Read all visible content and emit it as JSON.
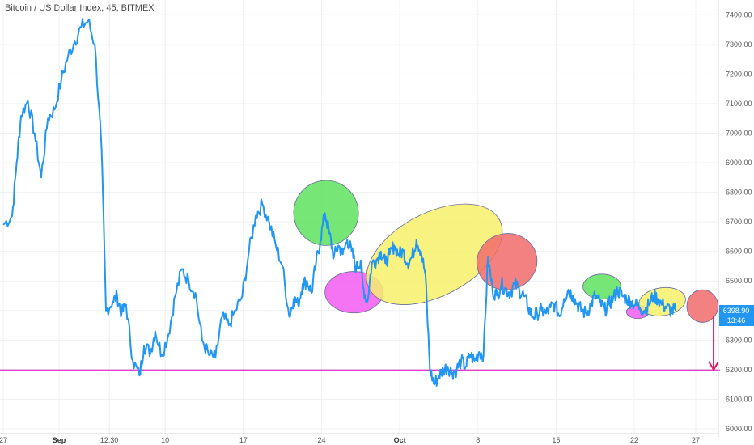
{
  "header": {
    "title": "Bitcoin / US Dollar Index, 45, BITMEX"
  },
  "price_badge": {
    "value": "6398.90",
    "countdown": "13:46",
    "color": "#2196f3"
  },
  "colors": {
    "line": "#2196f3",
    "support": "#e040c8",
    "arrow": "#e8185a",
    "grid": "#eef0f3"
  },
  "chart_data": {
    "type": "line",
    "title": "Bitcoin / US Dollar Index, 45, BITMEX",
    "xlabel": "",
    "ylabel": "",
    "ylim": [
      6000,
      7450
    ],
    "y_ticks": [
      6000,
      6100,
      6200,
      6300,
      6400,
      6500,
      6600,
      6700,
      6800,
      6900,
      7000,
      7100,
      7200,
      7300,
      7400
    ],
    "y_tick_labels": [
      "6000.00",
      "6100.00",
      "6200.00",
      "6300.00",
      "6400.00",
      "6500.00",
      "6600.00",
      "6700.00",
      "6800.00",
      "6900.00",
      "7000.00",
      "7100.00",
      "7200.00",
      "7300.00",
      "7400.00"
    ],
    "x_range": [
      0,
      62
    ],
    "x_ticks": [
      {
        "x": 0.0,
        "label": "27"
      },
      {
        "x": 5.0,
        "label": "Sep",
        "bold": true
      },
      {
        "x": 9.5,
        "label": "12:30"
      },
      {
        "x": 14.5,
        "label": "10"
      },
      {
        "x": 21.5,
        "label": "17"
      },
      {
        "x": 28.5,
        "label": "24"
      },
      {
        "x": 35.5,
        "label": "Oct",
        "bold": true
      },
      {
        "x": 42.5,
        "label": "8"
      },
      {
        "x": 49.5,
        "label": "15"
      },
      {
        "x": 56.5,
        "label": "22"
      },
      {
        "x": 62.0,
        "label": "27"
      }
    ],
    "series": [
      {
        "x": [
          0,
          0.8,
          1.2,
          1.6,
          2.2,
          2.8,
          3.4,
          4.0,
          4.6,
          5.2,
          5.8,
          6.4,
          7.0,
          7.6,
          8.2,
          8.8,
          9.2,
          9.8,
          10.2,
          10.6,
          11.0,
          11.6,
          12.2,
          12.6,
          13.2,
          13.6,
          14.2,
          14.8,
          15.4,
          16.0,
          16.6,
          17.2,
          17.8,
          18.4,
          19.0,
          19.6,
          20.2,
          20.8,
          21.4,
          22.0,
          22.6,
          23.2,
          23.8,
          24.4,
          25.0,
          25.6,
          26.0,
          26.4,
          26.8,
          27.2,
          27.6,
          28.0,
          28.4,
          28.8,
          29.2,
          29.6,
          30.0,
          30.4,
          30.8,
          31.2,
          31.6,
          32.0,
          32.2,
          32.6,
          33.0,
          33.4,
          33.8,
          34.2,
          34.6,
          35.0,
          35.4,
          35.8,
          36.2,
          36.6,
          37.0,
          37.4,
          37.8,
          38.2,
          38.6,
          39.0,
          39.4,
          39.8,
          40.2,
          40.6,
          41.0,
          41.4,
          41.8,
          42.2,
          42.6,
          43.0,
          43.4,
          43.8,
          44.2,
          44.6,
          45.0,
          45.4,
          45.8,
          46.2,
          46.6,
          47.0,
          47.4,
          47.8,
          48.2,
          48.6,
          49.0,
          49.4,
          49.8,
          50.2,
          50.6,
          51.0,
          51.4,
          51.8,
          52.2,
          52.6,
          53.0,
          53.4,
          53.8,
          54.2,
          54.6,
          55.0,
          55.4,
          55.8,
          56.2,
          56.6,
          57.0,
          57.4,
          57.8,
          58.2,
          58.6,
          59.0,
          59.4,
          59.8,
          60.2
        ],
        "y": [
          6690,
          6720,
          6900,
          7060,
          7110,
          7000,
          6850,
          7050,
          7080,
          7180,
          7260,
          7310,
          7360,
          7380,
          7300,
          6950,
          6400,
          6430,
          6450,
          6390,
          6420,
          6230,
          6180,
          6280,
          6260,
          6330,
          6250,
          6320,
          6450,
          6540,
          6500,
          6460,
          6300,
          6250,
          6240,
          6380,
          6350,
          6400,
          6450,
          6600,
          6720,
          6760,
          6700,
          6620,
          6550,
          6380,
          6440,
          6420,
          6490,
          6500,
          6460,
          6560,
          6640,
          6730,
          6660,
          6580,
          6620,
          6590,
          6640,
          6600,
          6540,
          6570,
          6480,
          6430,
          6560,
          6570,
          6600,
          6560,
          6590,
          6620,
          6590,
          6600,
          6560,
          6580,
          6640,
          6600,
          6520,
          6200,
          6150,
          6180,
          6200,
          6210,
          6190,
          6200,
          6230,
          6210,
          6250,
          6230,
          6260,
          6250,
          6580,
          6470,
          6450,
          6490,
          6470,
          6460,
          6490,
          6470,
          6450,
          6410,
          6380,
          6390,
          6400,
          6390,
          6410,
          6420,
          6380,
          6440,
          6470,
          6450,
          6420,
          6400,
          6390,
          6420,
          6450,
          6430,
          6400,
          6420,
          6440,
          6470,
          6450,
          6440,
          6430,
          6420,
          6410,
          6400,
          6420,
          6450,
          6440,
          6420,
          6410,
          6400,
          6398.9
        ]
      }
    ],
    "support_level": 6198,
    "highlight_ellipses": [
      {
        "cx": 28.9,
        "cy": 6730,
        "rx": 2.9,
        "ry": 110,
        "angle": -15,
        "color": "#5ee35e"
      },
      {
        "cx": 31.4,
        "cy": 6462,
        "rx": 2.6,
        "ry": 70,
        "angle": 0,
        "color": "#f25cf2"
      },
      {
        "cx": 38.6,
        "cy": 6590,
        "rx": 6.6,
        "ry": 140,
        "angle": -28,
        "color": "#f7f06a"
      },
      {
        "cx": 45.1,
        "cy": 6565,
        "rx": 2.7,
        "ry": 95,
        "angle": -12,
        "color": "#f26b6b"
      },
      {
        "cx": 53.6,
        "cy": 6481,
        "rx": 1.7,
        "ry": 42,
        "angle": 0,
        "color": "#5ee35e"
      },
      {
        "cx": 56.8,
        "cy": 6395,
        "rx": 1.0,
        "ry": 22,
        "angle": 0,
        "color": "#f25cf2"
      },
      {
        "cx": 59.0,
        "cy": 6430,
        "rx": 2.1,
        "ry": 47,
        "angle": -8,
        "color": "#f7f06a"
      },
      {
        "cx": 62.6,
        "cy": 6415,
        "rx": 1.4,
        "ry": 55,
        "angle": 0,
        "color": "#f26b6b"
      }
    ],
    "arrow": {
      "x": 63.6,
      "y_from": 6380,
      "y_to": 6200
    }
  }
}
